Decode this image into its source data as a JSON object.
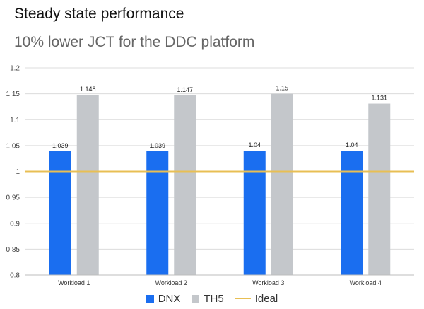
{
  "title": "Steady state performance",
  "subtitle": "10% lower JCT for the DDC platform",
  "colors": {
    "dnx": "#1a6ef0",
    "th5": "#c4c7cb",
    "ideal": "#e8bf54",
    "grid": "#dcdcdc"
  },
  "chart_data": {
    "type": "bar",
    "categories": [
      "Workload 1",
      "Workload 2",
      "Workload 3",
      "Workload 4"
    ],
    "series": [
      {
        "name": "DNX",
        "values": [
          1.039,
          1.039,
          1.04,
          1.04
        ],
        "labels": [
          "1.039",
          "1.039",
          "1.04",
          "1.04"
        ]
      },
      {
        "name": "TH5",
        "values": [
          1.148,
          1.147,
          1.15,
          1.131
        ],
        "labels": [
          "1.148",
          "1.147",
          "1.15",
          "1.131"
        ]
      }
    ],
    "reference_line": {
      "name": "Ideal",
      "value": 1
    },
    "ylim": [
      0.8,
      1.2
    ],
    "yticks": [
      "0.8",
      "0.85",
      "0.9",
      "0.95",
      "1",
      "1.05",
      "1.1",
      "1.15",
      "1.2"
    ],
    "grid": true,
    "legend": "bottom-center"
  }
}
